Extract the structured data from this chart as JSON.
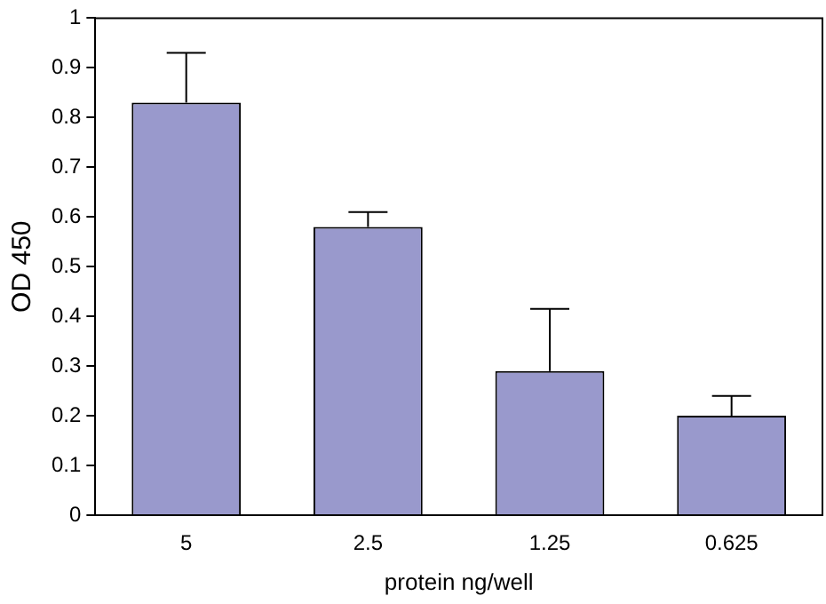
{
  "chart_data": {
    "type": "bar",
    "xlabel": "protein ng/well",
    "ylabel": "OD 450",
    "categories": [
      "5",
      "2.5",
      "1.25",
      "0.625"
    ],
    "values": [
      0.83,
      0.58,
      0.29,
      0.2
    ],
    "errors": [
      [
        0.83,
        0.93
      ],
      [
        0.58,
        0.61
      ],
      [
        0.29,
        0.415
      ],
      [
        0.2,
        0.24
      ]
    ],
    "color": "#9999cc",
    "ylim": [
      0,
      1
    ],
    "yticks": [
      0,
      0.1,
      0.2,
      0.3,
      0.4,
      0.5,
      0.6,
      0.7,
      0.8,
      0.9,
      1
    ],
    "grid": false,
    "legend": false
  }
}
